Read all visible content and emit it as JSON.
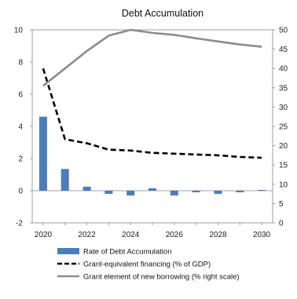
{
  "chart_data": {
    "type": "bar+line",
    "title": "Debt Accumulation",
    "xlabel": "",
    "ylabel": "",
    "y2label": "",
    "ylim": [
      -2,
      10
    ],
    "y2lim": [
      0,
      50
    ],
    "x": [
      2020,
      2021,
      2022,
      2023,
      2024,
      2025,
      2026,
      2027,
      2028,
      2029,
      2030
    ],
    "x_ticks": [
      "2020",
      "2022",
      "2024",
      "2026",
      "2028",
      "2030"
    ],
    "y_ticks": [
      "-2",
      "0",
      "2",
      "4",
      "6",
      "8",
      "10"
    ],
    "y2_ticks": [
      "0",
      "5",
      "10",
      "15",
      "20",
      "25",
      "30",
      "35",
      "40",
      "45",
      "50"
    ],
    "grid": false,
    "legend_position": "bottom",
    "series": [
      {
        "name": "Rate of Debt Accumulation",
        "kind": "bar",
        "axis": "left",
        "color": "#4a7ebb",
        "values": [
          4.6,
          1.35,
          0.25,
          -0.2,
          -0.3,
          0.15,
          -0.3,
          -0.1,
          -0.2,
          -0.1,
          0.05
        ]
      },
      {
        "name": "Grant-equivalent financing (% of GDP)",
        "kind": "line",
        "style": "dashed",
        "axis": "left",
        "color": "#000000",
        "values": [
          7.6,
          3.2,
          2.95,
          2.55,
          2.5,
          2.35,
          2.3,
          2.25,
          2.2,
          2.1,
          2.05
        ]
      },
      {
        "name": "Grant element of new borrowing (% right scale)",
        "kind": "line",
        "style": "solid",
        "axis": "right",
        "color": "#8c8c8c",
        "values": [
          35.5,
          40,
          44.5,
          48.5,
          50,
          49.2,
          48.7,
          47.8,
          47,
          46.2,
          45.6
        ]
      }
    ]
  }
}
